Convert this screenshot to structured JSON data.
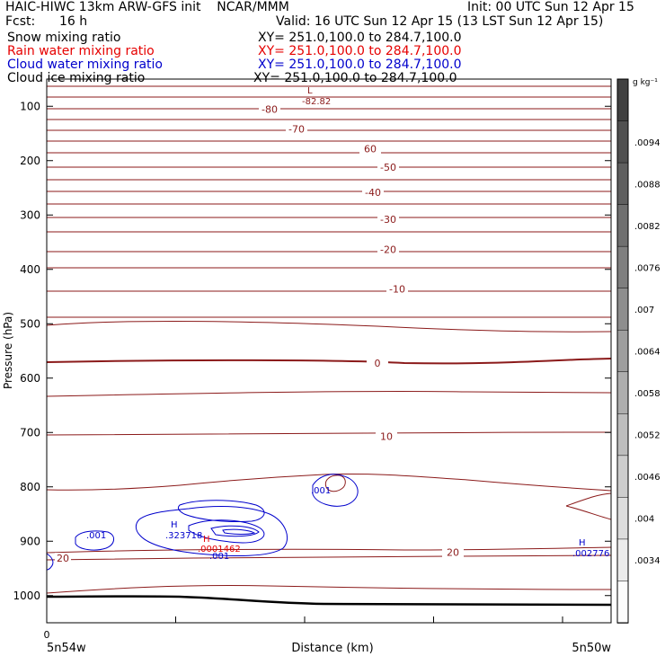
{
  "header": {
    "left_line1": "HAIC-HIWC 13km ARW-GFS init    NCAR/MMM",
    "right_line1": "Init: 00 UTC Sun 12 Apr 15",
    "fcst_label": "Fcst:",
    "fcst_value": "16 h",
    "valid": "Valid: 16 UTC Sun 12 Apr 15 (13 LST Sun 12 Apr 15)",
    "fields": [
      {
        "name": "Snow mixing ratio",
        "xy": "XY= 251.0,100.0 to 284.7,100.0",
        "color": "#000000"
      },
      {
        "name": "Rain water mixing ratio",
        "xy": "XY= 251.0,100.0 to 284.7,100.0",
        "color": "#e60000"
      },
      {
        "name": "Cloud water mixing ratio",
        "xy": "XY= 251.0,100.0 to 284.7,100.0",
        "color": "#0000cc"
      },
      {
        "name": "Cloud ice mixing ratio",
        "xy": "XY= 251.0,100.0 to 284.7,100.0",
        "color": "#000000"
      }
    ]
  },
  "chart_data": {
    "type": "contour",
    "xlabel": "Distance (km)",
    "ylabel": "Pressure (hPa)",
    "x_tick_zero": "0",
    "x_endpoints": [
      "5n54w",
      "5n50w"
    ],
    "y_ticks": [
      100,
      200,
      300,
      400,
      500,
      600,
      700,
      800,
      900,
      1000
    ],
    "ylim": [
      50,
      1050
    ],
    "temperature_contour_labels": [
      {
        "value": "-80",
        "p": 105
      },
      {
        "value": "-70",
        "p": 142
      },
      {
        "value": "60",
        "p": 178
      },
      {
        "value": "-50",
        "p": 212
      },
      {
        "value": "-40",
        "p": 258
      },
      {
        "value": "-30",
        "p": 308
      },
      {
        "value": "-20",
        "p": 363
      },
      {
        "value": "-10",
        "p": 436
      },
      {
        "value": "0",
        "p": 572
      },
      {
        "value": "10",
        "p": 707
      },
      {
        "value": "20",
        "p": 920
      }
    ],
    "extremum_labels": [
      {
        "mark": "L",
        "value": "-82.82",
        "color": "#8b1a1a"
      },
      {
        "mark": "H",
        "value": ".323718",
        "color": "#0000cc"
      },
      {
        "mark": "H",
        "value": ".0001462",
        "color": "#e60000"
      },
      {
        "mark": "H",
        "value": ".002776",
        "color": "#0000cc"
      }
    ],
    "cloud_water_contour_labels": [
      ".001",
      ".001",
      ".001"
    ],
    "colorbar": {
      "unit": "g kg⁻¹",
      "labels": [
        ".0094",
        ".0088",
        ".0082",
        ".0076",
        ".007",
        ".0064",
        ".0058",
        ".0052",
        ".0046",
        ".004",
        ".0034"
      ]
    }
  }
}
